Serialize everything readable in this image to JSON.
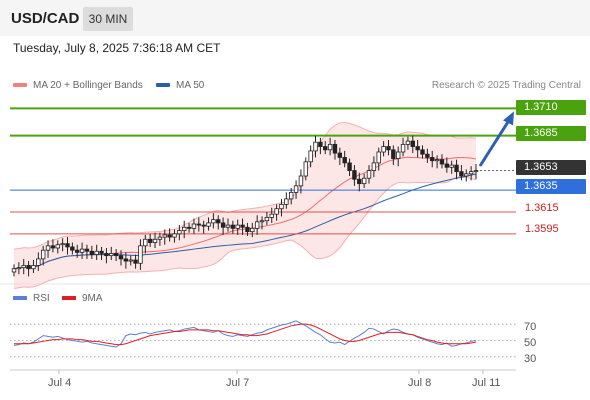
{
  "header": {
    "symbol": "USD/CAD",
    "timeframe": "30 MIN"
  },
  "datetime": "Tuesday, July 8, 2025 7:36:18 AM CET",
  "legend": {
    "ma20": {
      "label": "MA 20 + Bollinger Bands",
      "color": "#f08080"
    },
    "ma50": {
      "label": "MA 50",
      "color": "#2b5ea8"
    }
  },
  "credit": "Research © 2025 Trading Central",
  "levels": {
    "r2": "1.3710",
    "r1": "1.3685",
    "current": "1.3653",
    "pivot": "1.3635",
    "s1": "1.3615",
    "s2": "1.3595"
  },
  "colors": {
    "resistance": "#4aa30e",
    "pivot": "#2f6fdc",
    "support": "#e05050",
    "current": "#333333"
  },
  "rsi_legend": {
    "rsi": "RSI",
    "ma": "9MA",
    "rsi_color": "#5b7fd6",
    "ma_color": "#e02020"
  },
  "rsi_axis": [
    "70",
    "50",
    "30"
  ],
  "x_axis": [
    "Jul 4",
    "Jul 7",
    "Jul 8",
    "Jul 11"
  ],
  "chart_data": {
    "type": "candlestick",
    "price_range": [
      1.356,
      1.3725
    ],
    "closes": [
      1.3563,
      1.3564,
      1.3566,
      1.3563,
      1.3566,
      1.3572,
      1.358,
      1.3584,
      1.3582,
      1.3585,
      1.3586,
      1.3583,
      1.358,
      1.3578,
      1.3581,
      1.3579,
      1.3576,
      1.3579,
      1.3577,
      1.3575,
      1.3577,
      1.3575,
      1.3572,
      1.357,
      1.3571,
      1.3568,
      1.3584,
      1.359,
      1.3587,
      1.359,
      1.3592,
      1.3594,
      1.3592,
      1.3595,
      1.3598,
      1.3601,
      1.36,
      1.3604,
      1.3603,
      1.3602,
      1.3605,
      1.3608,
      1.3605,
      1.3601,
      1.3603,
      1.36,
      1.3603,
      1.3601,
      1.3597,
      1.36,
      1.3606,
      1.3607,
      1.361,
      1.3613,
      1.3618,
      1.3622,
      1.3627,
      1.3633,
      1.3639,
      1.3648,
      1.3661,
      1.3671,
      1.3679,
      1.3675,
      1.3672,
      1.3677,
      1.3669,
      1.3665,
      1.366,
      1.3653,
      1.3645,
      1.3641,
      1.3646,
      1.3653,
      1.366,
      1.367,
      1.3675,
      1.3672,
      1.3664,
      1.367,
      1.3677,
      1.368,
      1.3675,
      1.3672,
      1.3668,
      1.3665,
      1.3662,
      1.3663,
      1.3659,
      1.3656,
      1.3658,
      1.3652,
      1.3648,
      1.365,
      1.3652,
      1.3653
    ],
    "rsi": [
      44,
      45,
      47,
      46,
      48,
      52,
      56,
      55,
      54,
      55,
      53,
      51,
      50,
      49,
      48,
      49,
      47,
      46,
      45,
      44,
      43,
      42,
      46,
      56,
      58,
      57,
      59,
      60,
      58,
      60,
      61,
      62,
      63,
      61,
      62,
      64,
      65,
      66,
      63,
      62,
      61,
      60,
      62,
      58,
      56,
      55,
      57,
      56,
      55,
      57,
      59,
      60,
      63,
      65,
      67,
      69,
      70,
      72,
      74,
      71,
      68,
      64,
      60,
      57,
      52,
      48,
      47,
      48,
      45,
      49,
      53,
      56,
      60,
      65,
      64,
      61,
      58,
      62,
      64,
      63,
      60,
      58,
      57,
      54,
      52,
      50,
      48,
      46,
      45,
      47,
      43,
      44,
      46,
      47,
      49,
      50
    ],
    "rsi_ma": [
      46,
      46,
      46,
      46,
      47,
      48,
      49,
      50,
      51,
      51,
      52,
      52,
      52,
      51,
      51,
      50,
      49,
      49,
      48,
      47,
      46,
      45,
      45,
      46,
      48,
      50,
      52,
      54,
      56,
      57,
      58,
      59,
      60,
      61,
      61,
      62,
      63,
      63,
      63,
      63,
      63,
      62,
      62,
      61,
      60,
      59,
      58,
      57,
      57,
      56,
      56,
      57,
      58,
      60,
      62,
      64,
      66,
      68,
      69,
      70,
      70,
      69,
      67,
      64,
      61,
      58,
      55,
      52,
      50,
      49,
      49,
      50,
      52,
      54,
      56,
      58,
      59,
      60,
      60,
      60,
      59,
      58,
      57,
      55,
      53,
      51,
      50,
      48,
      47,
      46,
      46,
      46,
      46,
      46,
      47,
      48
    ],
    "rsi_levels": [
      70,
      50,
      30
    ]
  }
}
